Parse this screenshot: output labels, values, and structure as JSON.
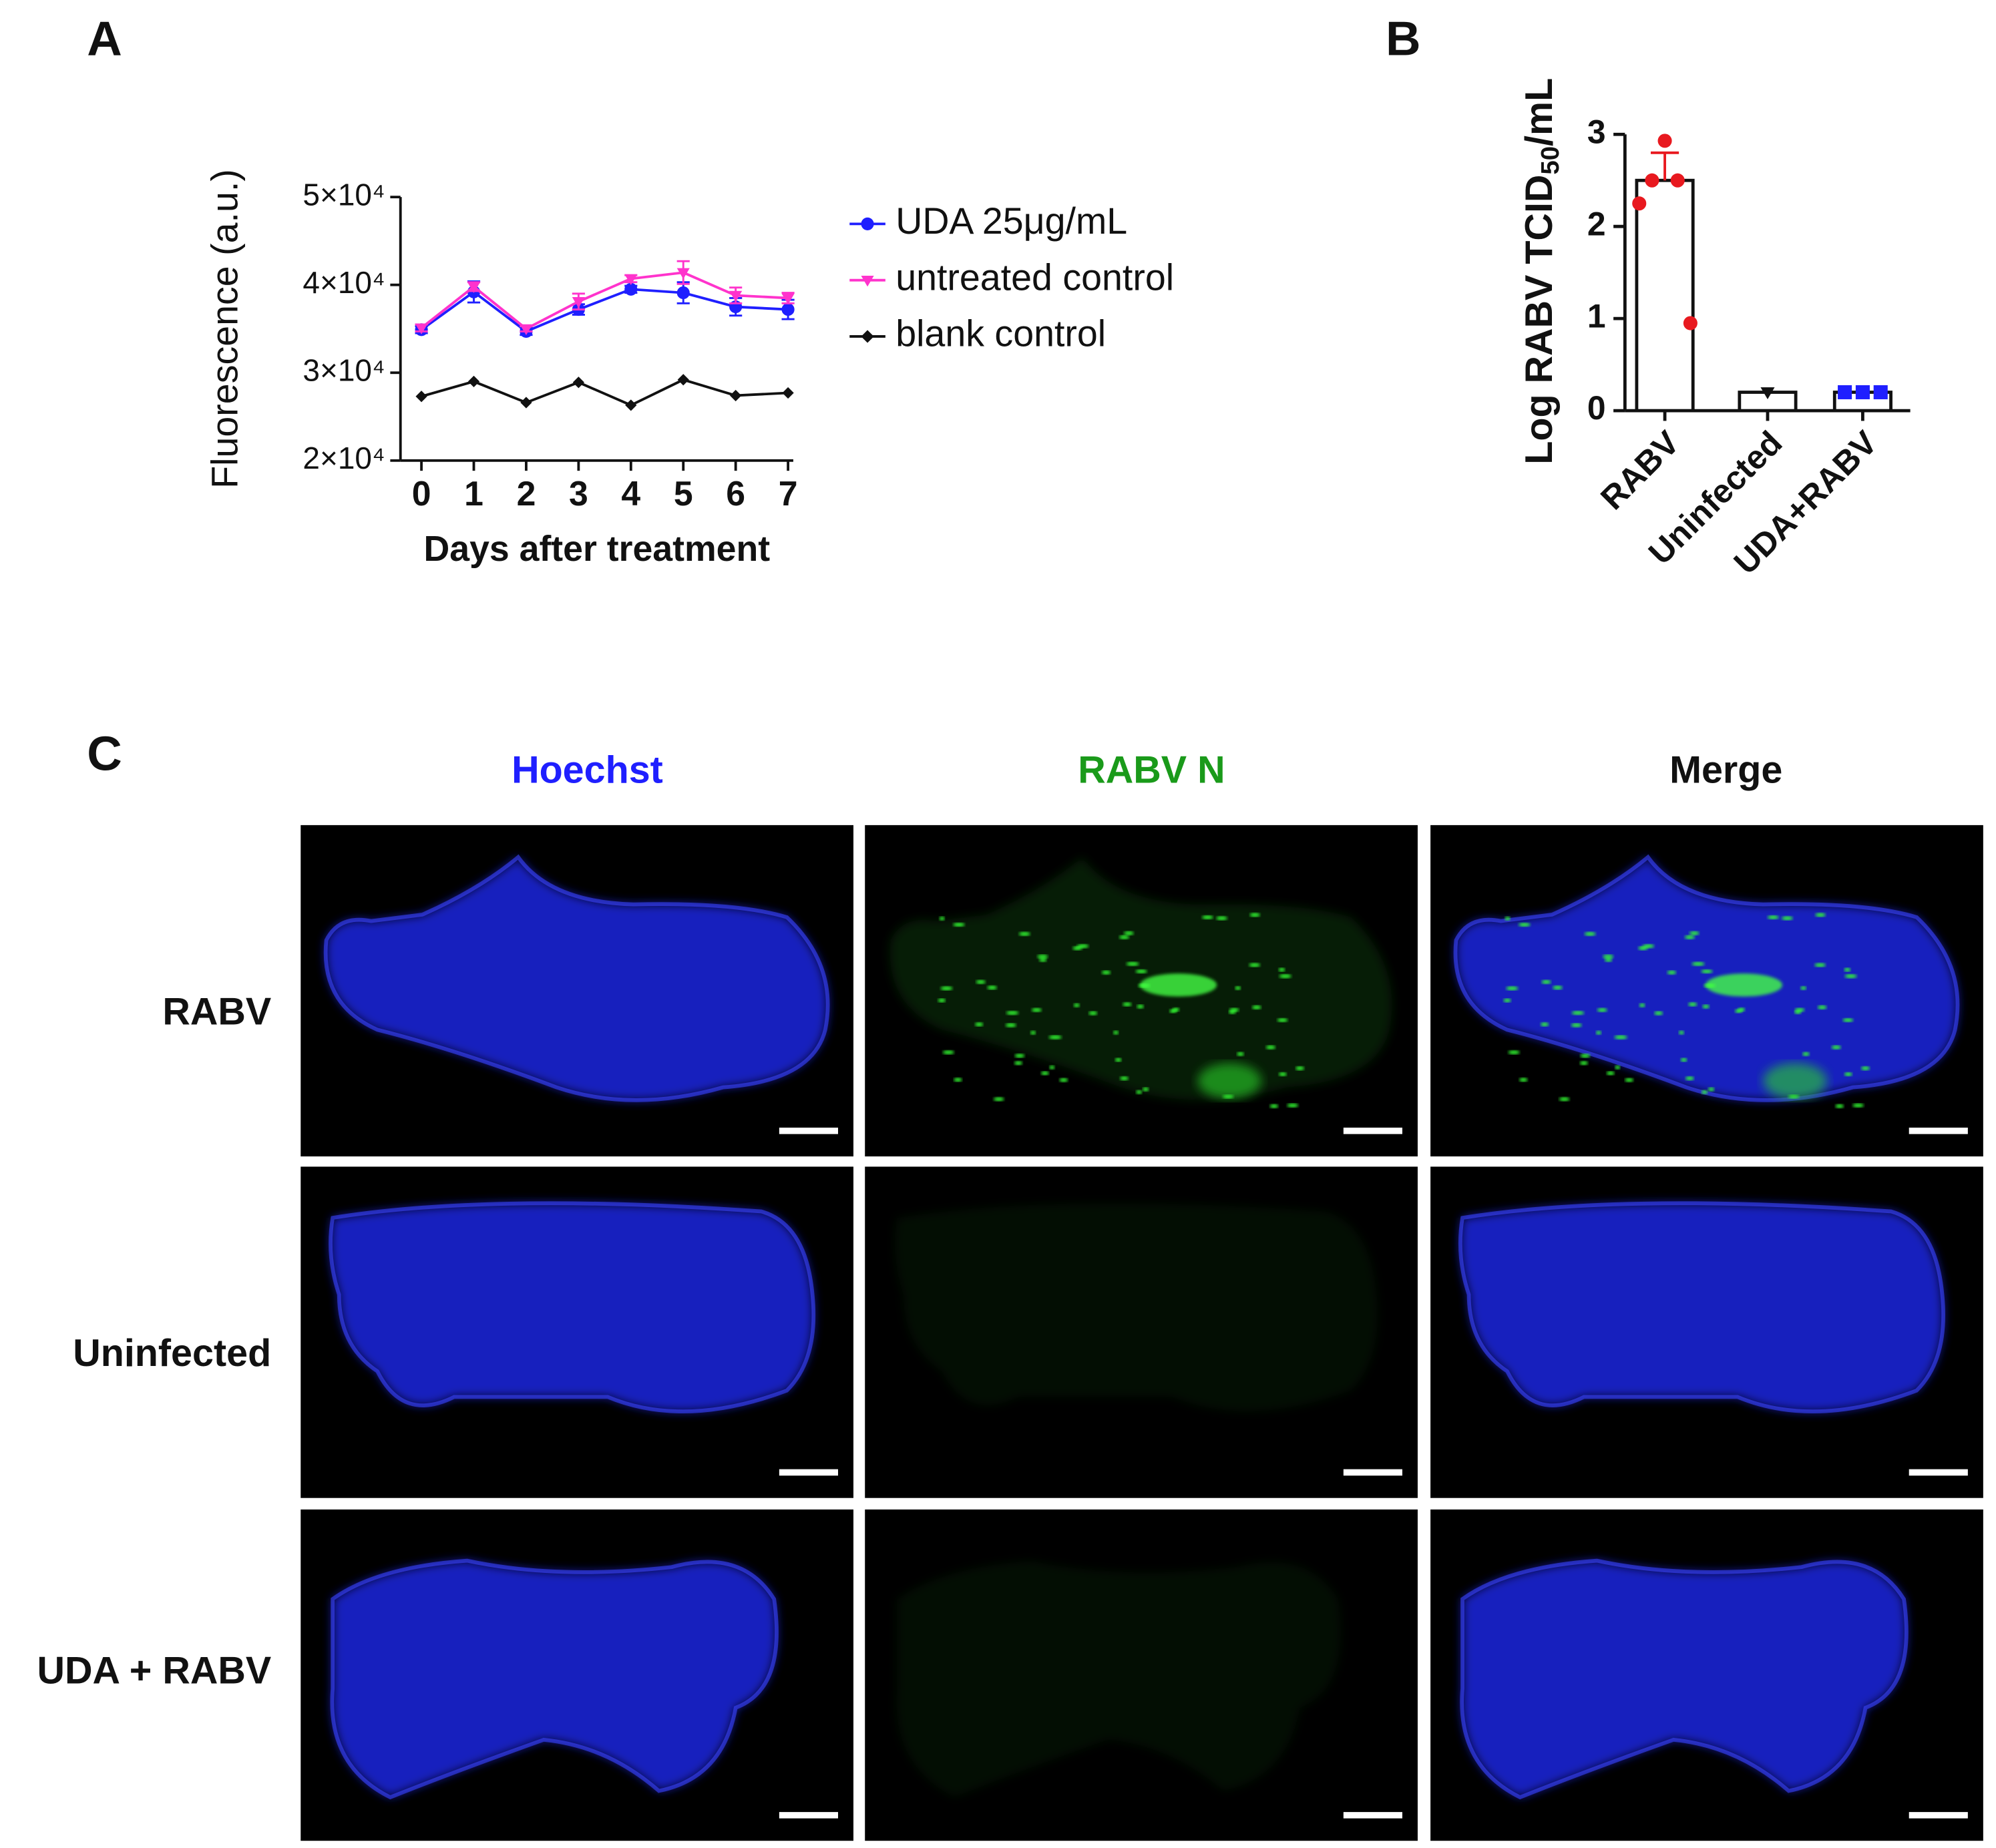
{
  "chart_data": [
    {
      "type": "line",
      "panel_label": "A",
      "xlabel": "Days after treatment",
      "ylabel": "Fluorescence (a.u.)",
      "x": [
        0,
        1,
        2,
        3,
        4,
        5,
        6,
        7
      ],
      "xlim": [
        -0.4,
        7.1
      ],
      "xticks": [
        0,
        1,
        2,
        3,
        4,
        5,
        6,
        7
      ],
      "ylim": [
        20000,
        50000
      ],
      "yticks": [
        {
          "value": 20000,
          "label": "2×10⁴"
        },
        {
          "value": 30000,
          "label": "3×10⁴"
        },
        {
          "value": 40000,
          "label": "4×10⁴"
        },
        {
          "value": 50000,
          "label": "5×10⁴"
        }
      ],
      "legend": "right",
      "series": [
        {
          "name": "UDA 25μg/mL",
          "color": "#1f1fff",
          "marker": "circle",
          "values": [
            34900,
            39200,
            34700,
            37200,
            39500,
            39100,
            37500,
            37200
          ],
          "errors": [
            400,
            1200,
            400,
            600,
            400,
            1200,
            1000,
            1100
          ]
        },
        {
          "name": "untreated control",
          "color": "#ff33cc",
          "marker": "triangle-down",
          "values": [
            35100,
            39800,
            35000,
            38100,
            40700,
            41400,
            38800,
            38500
          ],
          "errors": [
            400,
            500,
            300,
            900,
            400,
            1300,
            900,
            600
          ]
        },
        {
          "name": "blank control",
          "color": "#111111",
          "marker": "diamond",
          "values": [
            27300,
            29000,
            26600,
            28900,
            26300,
            29200,
            27400,
            27700
          ]
        }
      ]
    },
    {
      "type": "bar",
      "panel_label": "B",
      "ylabel": [
        "Log RABV TCID",
        "50",
        "/mL"
      ],
      "categories": [
        "RABV",
        "Uninfected",
        "UDA+RABV"
      ],
      "values": [
        2.5,
        0.2,
        0.2
      ],
      "errors": [
        0.3,
        null,
        null
      ],
      "points": [
        [
          2.93,
          2.5,
          2.5,
          2.25,
          0.95
        ],
        [
          0.2
        ],
        [
          0.2,
          0.2,
          0.2
        ]
      ],
      "point_colors": [
        "#e8191f",
        "#111111",
        "#1f1fff"
      ],
      "point_markers": [
        "circle",
        "triangle-down",
        "square"
      ],
      "ylim": [
        0,
        3
      ],
      "yticks": [
        0,
        1,
        2,
        3
      ]
    }
  ],
  "image_panel": {
    "panel_label": "C",
    "columns": [
      {
        "text": "Hoechst",
        "color": "#1f1fff"
      },
      {
        "text": "RABV N",
        "color": "#1a9a1a"
      },
      {
        "text": "Merge",
        "color": "#111111"
      }
    ],
    "rows": [
      "RABV",
      "Uninfected",
      "UDA + RABV"
    ]
  }
}
